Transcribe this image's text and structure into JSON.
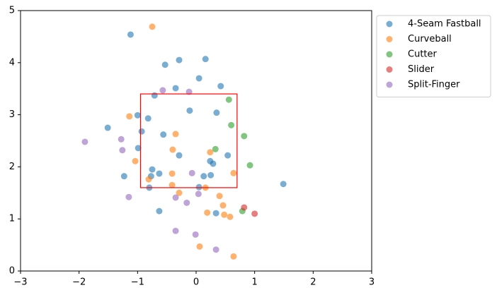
{
  "chart_data": {
    "type": "scatter",
    "xlim": [
      -3,
      3
    ],
    "ylim": [
      0,
      5
    ],
    "xticks": [
      {
        "value": -3,
        "label": "−3"
      },
      {
        "value": -2,
        "label": "−2"
      },
      {
        "value": -1,
        "label": "−1"
      },
      0,
      1,
      2,
      3
    ],
    "yticks": [
      0,
      1,
      2,
      3,
      4,
      5
    ],
    "grid": false,
    "legend": "outside-upper-right",
    "strike_zone": {
      "x": [
        -0.95,
        0.7
      ],
      "y": [
        1.6,
        3.4
      ],
      "color": "#ff0000"
    },
    "series": [
      {
        "name": "4-Seam Fastball",
        "color": "#1f77b4",
        "x": [
          -1.12,
          -0.29,
          0.16,
          -0.53,
          0.05,
          0.42,
          -0.35,
          -0.71,
          -1.0,
          -0.11,
          0.35,
          -0.82,
          -1.51,
          -0.93,
          -0.56,
          -0.99,
          -0.29,
          0.54,
          0.24,
          0.29,
          -0.75,
          -0.63,
          -0.77,
          -1.23,
          0.13,
          0.25,
          0.05,
          -0.8,
          1.49,
          -0.63,
          0.34
        ],
        "y": [
          4.54,
          4.05,
          4.07,
          3.96,
          3.7,
          3.55,
          3.51,
          3.37,
          2.99,
          3.08,
          3.04,
          2.93,
          2.75,
          2.68,
          2.62,
          2.36,
          2.22,
          2.22,
          2.11,
          2.06,
          1.95,
          1.87,
          1.82,
          1.82,
          1.82,
          1.84,
          1.61,
          1.6,
          1.67,
          1.15,
          1.11
        ]
      },
      {
        "name": "Curveball",
        "color": "#ff7f0e",
        "x": [
          -0.75,
          -1.14,
          -0.35,
          -0.4,
          0.24,
          -1.04,
          -0.41,
          0.64,
          -0.81,
          -0.41,
          0.16,
          -0.29,
          0.4,
          0.46,
          0.19,
          0.48,
          0.58,
          0.06,
          0.64
        ],
        "y": [
          4.69,
          2.97,
          2.63,
          2.33,
          2.28,
          2.11,
          1.87,
          1.88,
          1.76,
          1.65,
          1.6,
          1.5,
          1.44,
          1.26,
          1.12,
          1.08,
          1.04,
          0.47,
          0.28
        ]
      },
      {
        "name": "Cutter",
        "color": "#2ca02c",
        "x": [
          0.56,
          0.6,
          0.82,
          0.33,
          0.92,
          0.79
        ],
        "y": [
          3.29,
          2.8,
          2.59,
          2.34,
          2.03,
          1.15
        ]
      },
      {
        "name": "Slider",
        "color": "#d62728",
        "x": [
          0.82,
          1.0
        ],
        "y": [
          1.22,
          1.1
        ]
      },
      {
        "name": "Split-Finger",
        "color": "#9467bd",
        "x": [
          -0.57,
          -0.12,
          -1.9,
          -1.28,
          -1.26,
          -0.07,
          0.04,
          -1.15,
          -0.35,
          -0.16,
          -0.35,
          -0.01,
          0.34
        ],
        "y": [
          3.47,
          3.44,
          2.48,
          2.53,
          2.32,
          1.88,
          1.48,
          1.42,
          1.41,
          1.31,
          0.77,
          0.7,
          0.41
        ]
      }
    ]
  }
}
